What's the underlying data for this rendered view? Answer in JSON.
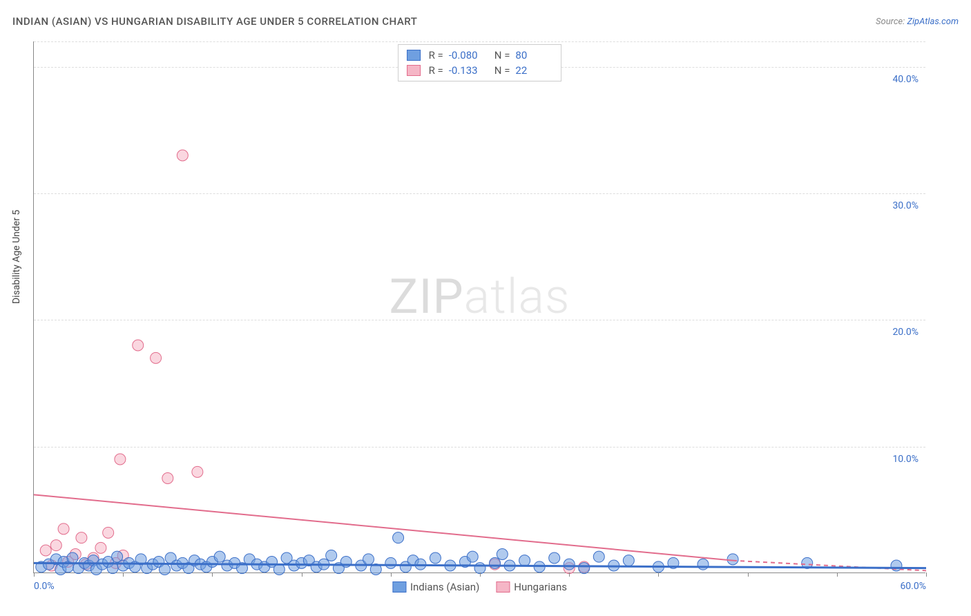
{
  "header": {
    "title": "INDIAN (ASIAN) VS HUNGARIAN DISABILITY AGE UNDER 5 CORRELATION CHART",
    "source_prefix": "Source: ",
    "source_link": "ZipAtlas.com"
  },
  "watermark": {
    "zip": "ZIP",
    "atlas": "atlas"
  },
  "chart": {
    "type": "scatter-correlation",
    "background_color": "#ffffff",
    "grid_color": "#dddddd",
    "axis_color": "#888888",
    "xlim": [
      0,
      60
    ],
    "ylim": [
      0,
      42
    ],
    "xtick_positions": [
      0,
      6,
      12,
      18,
      24,
      30,
      36,
      42,
      48,
      54,
      60
    ],
    "xtick_labels": {
      "0": "0.0%",
      "60": "60.0%"
    },
    "ytick_positions": [
      10,
      20,
      30,
      40,
      42
    ],
    "ytick_labels": {
      "10": "10.0%",
      "20": "20.0%",
      "30": "30.0%",
      "40": "40.0%"
    },
    "ylabel": "Disability Age Under 5",
    "marker_radius": 8,
    "marker_opacity": 0.55,
    "series": [
      {
        "id": "indians",
        "label": "Indians (Asian)",
        "color": "#6f9fe0",
        "border": "#3b6fc8",
        "r_value": "-0.080",
        "n_value": "80",
        "trend": {
          "x1": 0,
          "y1": 0.8,
          "x2": 60,
          "y2": 0.4
        },
        "points": [
          [
            0.5,
            0.5
          ],
          [
            1,
            0.7
          ],
          [
            1.5,
            1.1
          ],
          [
            1.8,
            0.3
          ],
          [
            2,
            0.9
          ],
          [
            2.3,
            0.5
          ],
          [
            2.6,
            1.2
          ],
          [
            3,
            0.4
          ],
          [
            3.4,
            0.8
          ],
          [
            3.7,
            0.6
          ],
          [
            4,
            1.0
          ],
          [
            4.2,
            0.3
          ],
          [
            4.6,
            0.7
          ],
          [
            5,
            0.9
          ],
          [
            5.3,
            0.4
          ],
          [
            5.6,
            1.3
          ],
          [
            6,
            0.6
          ],
          [
            6.4,
            0.8
          ],
          [
            6.8,
            0.5
          ],
          [
            7.2,
            1.1
          ],
          [
            7.6,
            0.4
          ],
          [
            8,
            0.7
          ],
          [
            8.4,
            0.9
          ],
          [
            8.8,
            0.3
          ],
          [
            9.2,
            1.2
          ],
          [
            9.6,
            0.6
          ],
          [
            10,
            0.8
          ],
          [
            10.4,
            0.4
          ],
          [
            10.8,
            1.0
          ],
          [
            11.2,
            0.7
          ],
          [
            11.6,
            0.5
          ],
          [
            12,
            0.9
          ],
          [
            12.5,
            1.3
          ],
          [
            13,
            0.6
          ],
          [
            13.5,
            0.8
          ],
          [
            14,
            0.4
          ],
          [
            14.5,
            1.1
          ],
          [
            15,
            0.7
          ],
          [
            15.5,
            0.5
          ],
          [
            16,
            0.9
          ],
          [
            16.5,
            0.3
          ],
          [
            17,
            1.2
          ],
          [
            17.5,
            0.6
          ],
          [
            18,
            0.8
          ],
          [
            18.5,
            1.0
          ],
          [
            19,
            0.5
          ],
          [
            19.5,
            0.7
          ],
          [
            20,
            1.4
          ],
          [
            20.5,
            0.4
          ],
          [
            21,
            0.9
          ],
          [
            22,
            0.6
          ],
          [
            22.5,
            1.1
          ],
          [
            23,
            0.3
          ],
          [
            24,
            0.8
          ],
          [
            24.5,
            2.8
          ],
          [
            25,
            0.5
          ],
          [
            25.5,
            1.0
          ],
          [
            26,
            0.7
          ],
          [
            27,
            1.2
          ],
          [
            28,
            0.6
          ],
          [
            29,
            0.9
          ],
          [
            29.5,
            1.3
          ],
          [
            30,
            0.4
          ],
          [
            31,
            0.8
          ],
          [
            31.5,
            1.5
          ],
          [
            32,
            0.6
          ],
          [
            33,
            1.0
          ],
          [
            34,
            0.5
          ],
          [
            35,
            1.2
          ],
          [
            36,
            0.7
          ],
          [
            37,
            0.4
          ],
          [
            38,
            1.3
          ],
          [
            39,
            0.6
          ],
          [
            40,
            1.0
          ],
          [
            42,
            0.5
          ],
          [
            43,
            0.8
          ],
          [
            45,
            0.7
          ],
          [
            47,
            1.1
          ],
          [
            52,
            0.8
          ],
          [
            58,
            0.6
          ]
        ]
      },
      {
        "id": "hungarians",
        "label": "Hungarians",
        "color": "#f5b6c6",
        "border": "#e26c8c",
        "r_value": "-0.133",
        "n_value": "22",
        "trend": {
          "x1": 0,
          "y1": 6.2,
          "x2": 47,
          "y2": 1.0
        },
        "trend_dashed": {
          "x1": 47,
          "y1": 1.0,
          "x2": 60,
          "y2": 0.2
        },
        "points": [
          [
            0.8,
            1.8
          ],
          [
            1.2,
            0.6
          ],
          [
            1.5,
            2.2
          ],
          [
            2,
            3.5
          ],
          [
            2.3,
            0.9
          ],
          [
            2.8,
            1.5
          ],
          [
            3.2,
            2.8
          ],
          [
            3.5,
            0.7
          ],
          [
            4,
            1.2
          ],
          [
            4.5,
            2.0
          ],
          [
            5,
            3.2
          ],
          [
            5.5,
            0.8
          ],
          [
            5.8,
            9.0
          ],
          [
            6,
            1.4
          ],
          [
            7,
            18.0
          ],
          [
            8.2,
            17.0
          ],
          [
            9,
            7.5
          ],
          [
            10,
            33.0
          ],
          [
            11,
            8.0
          ],
          [
            31,
            0.7
          ],
          [
            36,
            0.4
          ],
          [
            37,
            0.5
          ]
        ]
      }
    ]
  },
  "legend_top": {
    "r_label": "R =",
    "n_label": "N ="
  },
  "legend_bottom": [
    {
      "series": 0
    },
    {
      "series": 1
    }
  ]
}
